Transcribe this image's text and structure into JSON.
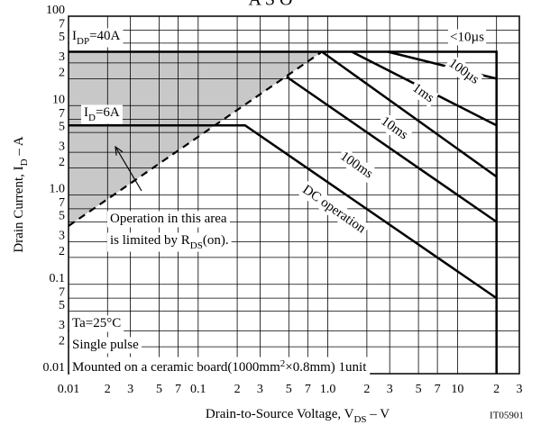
{
  "chart_data": {
    "type": "line",
    "title": "A S O",
    "x_label": [
      {
        "text": "Drain-to-Source Voltage,  V"
      },
      {
        "text": "DS",
        "script": "sub"
      },
      {
        "text": "  –  V"
      }
    ],
    "y_label": [
      {
        "text": "Drain Current,  I"
      },
      {
        "text": "D",
        "script": "sub"
      },
      {
        "text": "  –  A"
      }
    ],
    "code": "IT05901",
    "xscale": "log",
    "yscale": "log",
    "grid": true,
    "xlim": [
      0.01,
      30
    ],
    "ylim": [
      0.01,
      100
    ],
    "xticks": [
      0.01,
      {
        "value": 0.02,
        "label": "2"
      },
      {
        "value": 0.03,
        "label": "3"
      },
      {
        "value": 0.05,
        "label": "5"
      },
      {
        "value": 0.07,
        "label": "7"
      },
      0.1,
      {
        "value": 0.2,
        "label": "2"
      },
      {
        "value": 0.3,
        "label": "3"
      },
      {
        "value": 0.5,
        "label": "5"
      },
      {
        "value": 0.7,
        "label": "7"
      },
      {
        "value": 1,
        "label": "1.0"
      },
      2,
      3,
      5,
      7,
      10,
      {
        "value": 20,
        "label": "2"
      },
      {
        "value": 30,
        "label": "3"
      }
    ],
    "yticks": [
      0.01,
      {
        "value": 0.02,
        "label": "2"
      },
      {
        "value": 0.03,
        "label": "3"
      },
      {
        "value": 0.05,
        "label": "5"
      },
      {
        "value": 0.07,
        "label": "7"
      },
      0.1,
      {
        "value": 0.2,
        "label": "2"
      },
      {
        "value": 0.3,
        "label": "3"
      },
      {
        "value": 0.5,
        "label": "5"
      },
      {
        "value": 0.7,
        "label": "7"
      },
      {
        "value": 1,
        "label": "1.0"
      },
      2,
      3,
      5,
      7,
      10,
      {
        "value": 20,
        "label": "2"
      },
      {
        "value": 30,
        "label": "3"
      },
      {
        "value": 50,
        "label": "5"
      },
      {
        "value": 70,
        "label": "7"
      },
      100
    ],
    "series": [
      {
        "name": "<10µs",
        "color": "#000000",
        "x": [
          0.01,
          20,
          20
        ],
        "values": [
          40,
          40,
          0.01
        ]
      },
      {
        "name": "100µs",
        "color": "#000000",
        "x": [
          2.9,
          20
        ],
        "values": [
          40,
          20
        ]
      },
      {
        "name": "1ms",
        "color": "#000000",
        "x": [
          1.53,
          20
        ],
        "values": [
          40,
          6
        ]
      },
      {
        "name": "10ms",
        "color": "#000000",
        "x": [
          0.9,
          20
        ],
        "values": [
          40,
          1.6
        ]
      },
      {
        "name": "100ms",
        "color": "#000000",
        "x": [
          0.48,
          20
        ],
        "values": [
          21,
          0.5
        ]
      },
      {
        "name": "DC operation",
        "color": "#000000",
        "x": [
          0.01,
          0.23,
          20
        ],
        "values": [
          6,
          6,
          0.07
        ]
      }
    ],
    "rds_on_limit": {
      "x": [
        0.01,
        0.9
      ],
      "values": [
        0.45,
        40
      ],
      "style": "dashed",
      "fill": "#c8c8c8"
    },
    "annotations": [
      {
        "segments": [
          {
            "text": "I"
          },
          {
            "text": "DP",
            "script": "sub"
          },
          {
            "text": "=40A"
          }
        ]
      },
      {
        "segments": [
          {
            "text": "I"
          },
          {
            "text": "D",
            "script": "sub"
          },
          {
            "text": "=6A"
          }
        ]
      },
      {
        "segments": [
          {
            "text": "Operation in this area"
          }
        ]
      },
      {
        "segments": [
          {
            "text": "is limited by R"
          },
          {
            "text": "DS",
            "script": "sub"
          },
          {
            "text": "(on)."
          }
        ]
      },
      {
        "segments": [
          {
            "text": "Ta=25°C"
          }
        ]
      },
      {
        "segments": [
          {
            "text": "Single pulse"
          }
        ]
      },
      {
        "segments": [
          {
            "text": "Mounted on a ceramic board(1000mm"
          },
          {
            "text": "2",
            "script": "sup"
          },
          {
            "text": "×0.8mm) 1unit"
          }
        ]
      }
    ]
  }
}
